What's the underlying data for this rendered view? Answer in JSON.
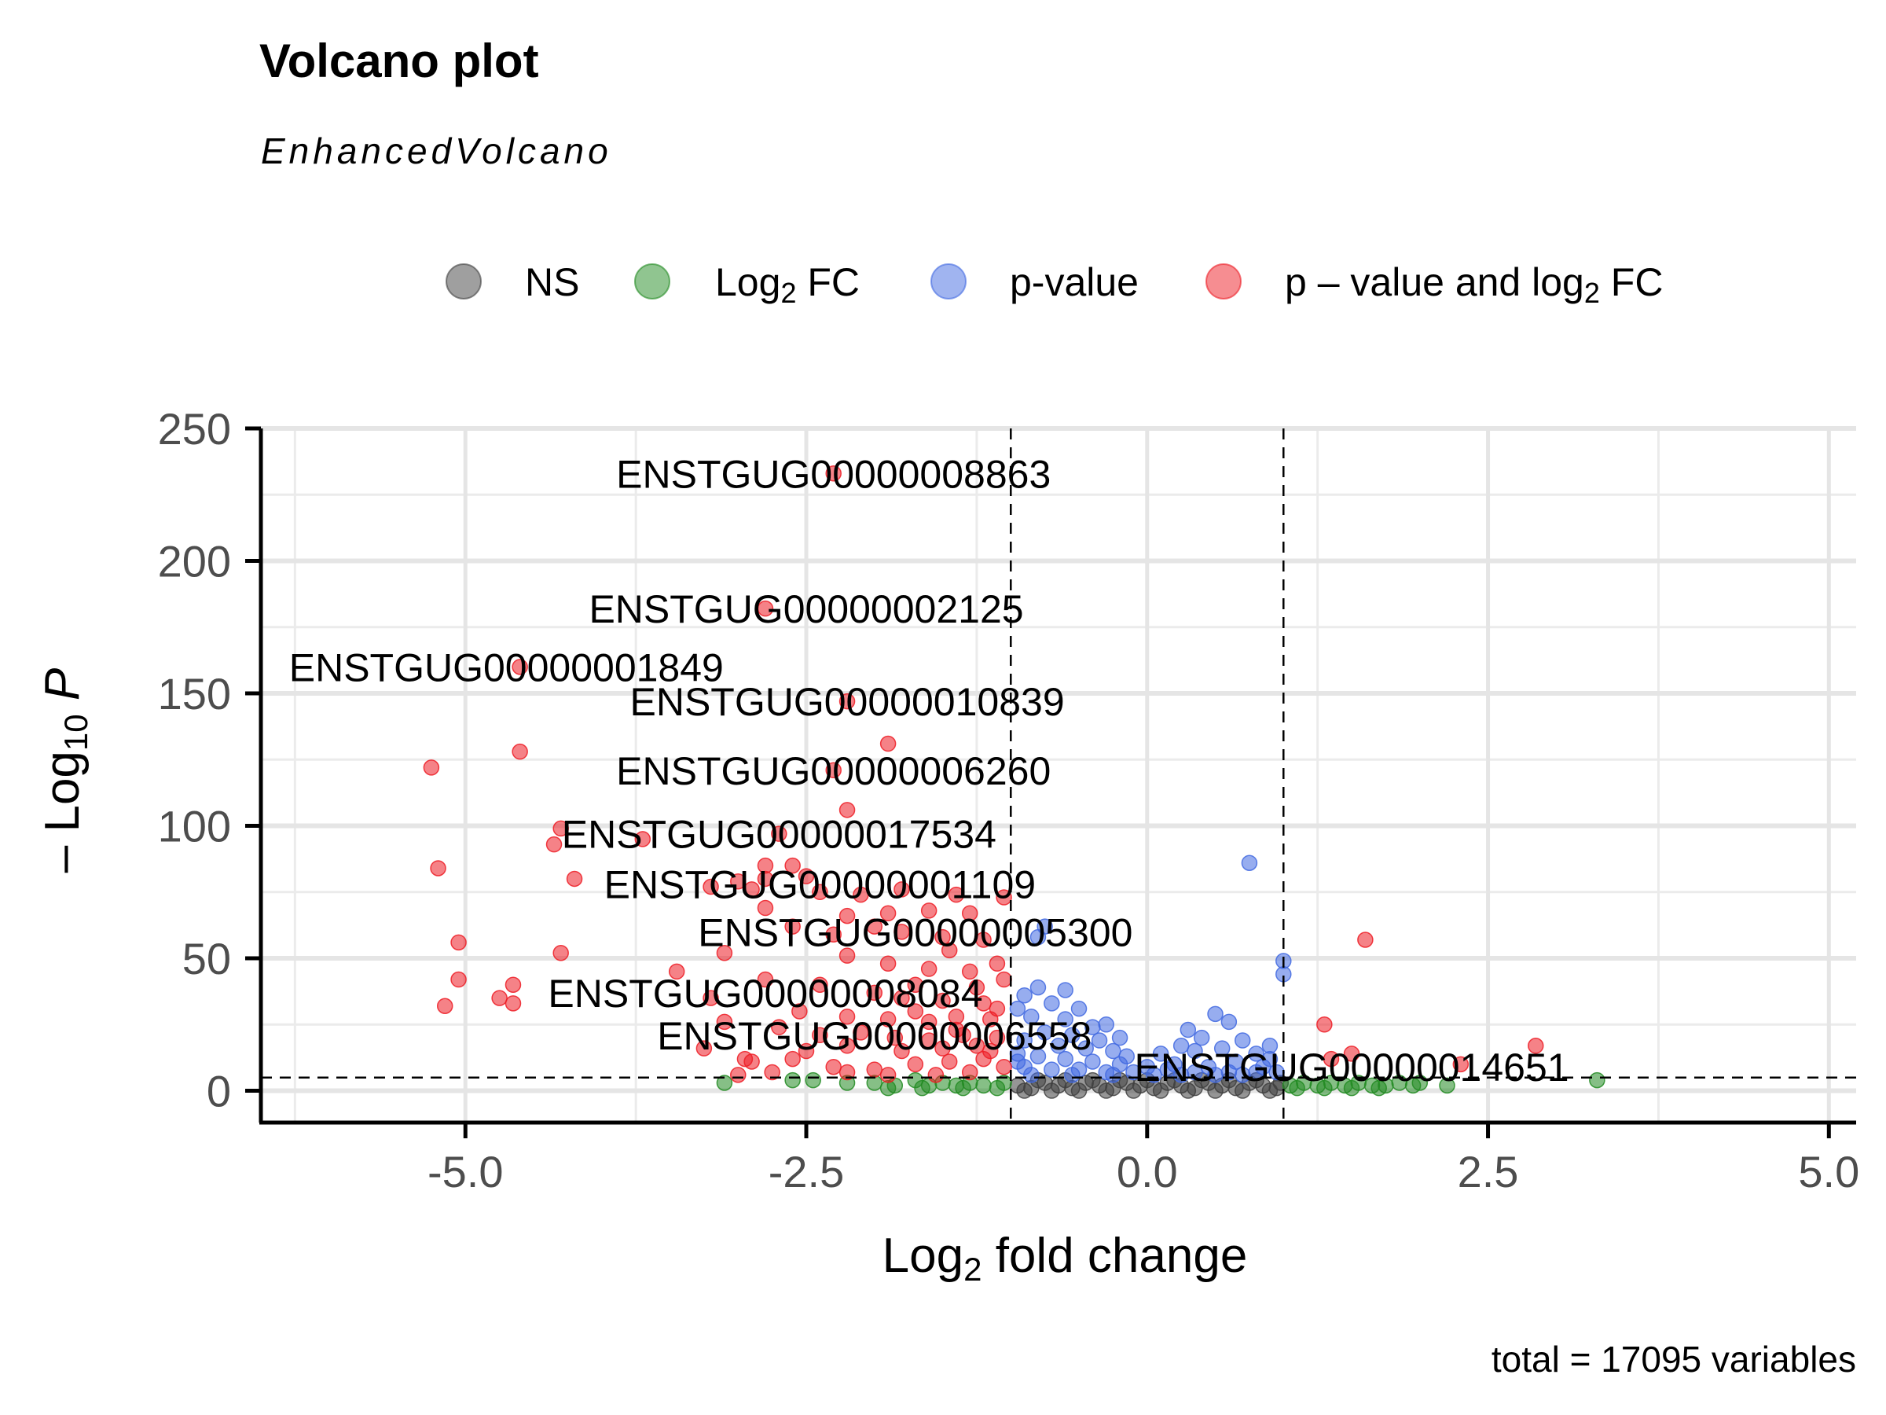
{
  "chart_data": {
    "type": "scatter",
    "title": "Volcano plot",
    "subtitle": "EnhancedVolcano",
    "caption": "total = 17095 variables",
    "xlabel": {
      "base": "Log",
      "sub": "2",
      "rest": " fold change"
    },
    "ylabel": {
      "prefix": "– Log",
      "sub": "10",
      "rest": " P"
    },
    "xlim": [
      -6.5,
      5.2
    ],
    "ylim": [
      -12,
      250
    ],
    "x_ticks": [
      -5.0,
      -2.5,
      0.0,
      2.5,
      5.0
    ],
    "x_tick_labels": [
      "-5.0",
      "-2.5",
      "0.0",
      "2.5",
      "5.0"
    ],
    "y_ticks": [
      0,
      50,
      100,
      150,
      200,
      250
    ],
    "y_tick_labels": [
      "0",
      "50",
      "100",
      "150",
      "200",
      "250"
    ],
    "grid": true,
    "legend_position": "top",
    "cutoffs": {
      "fc": [
        -1,
        1
      ],
      "p_y": 5
    },
    "legend": [
      {
        "key": "NS",
        "color": "#404040",
        "label": {
          "base": "NS",
          "sub": "",
          "rest": ""
        }
      },
      {
        "key": "FC",
        "color": "#228B22",
        "label": {
          "base": "Log",
          "sub": "2",
          "rest": " FC"
        }
      },
      {
        "key": "P",
        "color": "#4169E1",
        "label": {
          "base": "p-value",
          "sub": "",
          "rest": ""
        }
      },
      {
        "key": "FCP",
        "color": "#ED1C24",
        "label": {
          "base": "p – value and log",
          "sub": "2",
          "rest": " FC"
        }
      }
    ],
    "labels": [
      {
        "text": "ENSTGUG00000008863",
        "x": -2.3,
        "y": 233
      },
      {
        "text": "ENSTGUG00000002125",
        "x": -2.5,
        "y": 182
      },
      {
        "text": "ENSTGUG00000001849",
        "x": -4.7,
        "y": 160
      },
      {
        "text": "ENSTGUG00000010839",
        "x": -2.2,
        "y": 147
      },
      {
        "text": "ENSTGUG00000006260",
        "x": -2.3,
        "y": 121
      },
      {
        "text": "ENSTGUG00000017534",
        "x": -2.7,
        "y": 97
      },
      {
        "text": "ENSTGUG00000001109",
        "x": -2.4,
        "y": 78
      },
      {
        "text": "ENSTGUG00000005300",
        "x": -1.7,
        "y": 60
      },
      {
        "text": "ENSTGUG00000008084",
        "x": -2.8,
        "y": 37
      },
      {
        "text": "ENSTGUG00000006558",
        "x": -2.0,
        "y": 21
      },
      {
        "text": "ENSTGUG00000014651",
        "x": 1.5,
        "y": 9
      }
    ],
    "series": [
      {
        "key": "FCP",
        "points": [
          [
            -2.3,
            233
          ],
          [
            -2.8,
            182
          ],
          [
            -4.6,
            160
          ],
          [
            -2.2,
            147
          ],
          [
            -1.9,
            131
          ],
          [
            -4.6,
            128
          ],
          [
            -5.25,
            122
          ],
          [
            -2.3,
            121
          ],
          [
            -2.2,
            106
          ],
          [
            -4.3,
            99
          ],
          [
            -3.7,
            95
          ],
          [
            -4.35,
            93
          ],
          [
            -2.7,
            97
          ],
          [
            -5.2,
            84
          ],
          [
            -2.8,
            85
          ],
          [
            -2.6,
            85
          ],
          [
            -4.2,
            80
          ],
          [
            -3.0,
            79
          ],
          [
            -2.5,
            81
          ],
          [
            -2.8,
            80
          ],
          [
            -2.9,
            76
          ],
          [
            -3.2,
            77
          ],
          [
            -2.4,
            75
          ],
          [
            -2.1,
            74
          ],
          [
            -1.8,
            76
          ],
          [
            -1.4,
            74
          ],
          [
            -1.05,
            73
          ],
          [
            -2.8,
            69
          ],
          [
            -2.2,
            66
          ],
          [
            -1.9,
            67
          ],
          [
            -1.6,
            68
          ],
          [
            -1.3,
            67
          ],
          [
            -5.05,
            56
          ],
          [
            -4.3,
            52
          ],
          [
            -2.0,
            62
          ],
          [
            -1.8,
            60
          ],
          [
            -1.5,
            58
          ],
          [
            -1.2,
            57
          ],
          [
            -2.3,
            59
          ],
          [
            -2.6,
            62
          ],
          [
            1.6,
            57
          ],
          [
            -3.1,
            52
          ],
          [
            -2.2,
            51
          ],
          [
            -1.9,
            48
          ],
          [
            -1.6,
            46
          ],
          [
            -1.3,
            45
          ],
          [
            -1.05,
            42
          ],
          [
            -1.7,
            40
          ],
          [
            -5.05,
            42
          ],
          [
            -4.65,
            40
          ],
          [
            -3.45,
            45
          ],
          [
            -2.8,
            42
          ],
          [
            -2.4,
            40
          ],
          [
            -2.0,
            37
          ],
          [
            -1.8,
            35
          ],
          [
            -1.5,
            34
          ],
          [
            -1.2,
            33
          ],
          [
            -1.1,
            31
          ],
          [
            -5.15,
            32
          ],
          [
            -4.75,
            35
          ],
          [
            -4.65,
            33
          ],
          [
            -3.2,
            35
          ],
          [
            -2.55,
            30
          ],
          [
            -2.2,
            28
          ],
          [
            -1.9,
            27
          ],
          [
            -1.6,
            26
          ],
          [
            -1.4,
            28
          ],
          [
            -1.15,
            27
          ],
          [
            1.3,
            25
          ],
          [
            -3.1,
            26
          ],
          [
            -2.7,
            24
          ],
          [
            -2.4,
            21
          ],
          [
            -2.1,
            22
          ],
          [
            -1.85,
            20
          ],
          [
            -1.6,
            19
          ],
          [
            -1.35,
            21
          ],
          [
            -1.1,
            20
          ],
          [
            -1.25,
            17
          ],
          [
            -1.5,
            16
          ],
          [
            -1.8,
            15
          ],
          [
            -2.2,
            17
          ],
          [
            -2.5,
            15
          ],
          [
            -3.25,
            16
          ],
          [
            -2.95,
            12
          ],
          [
            -2.6,
            12
          ],
          [
            -2.3,
            9
          ],
          [
            -2.0,
            8
          ],
          [
            -1.7,
            10
          ],
          [
            -1.45,
            11
          ],
          [
            -1.2,
            12
          ],
          [
            -1.05,
            9
          ],
          [
            -1.3,
            7
          ],
          [
            -1.55,
            6
          ],
          [
            -1.9,
            6
          ],
          [
            -2.2,
            7
          ],
          [
            -2.75,
            7
          ],
          [
            -3.0,
            6
          ],
          [
            -2.9,
            11
          ],
          [
            -1.15,
            15
          ],
          [
            -1.4,
            23
          ],
          [
            -1.7,
            30
          ],
          [
            -1.25,
            39
          ],
          [
            -1.45,
            53
          ],
          [
            -1.1,
            48
          ],
          [
            2.85,
            17
          ],
          [
            1.35,
            12
          ],
          [
            2.3,
            10
          ],
          [
            1.5,
            14
          ]
        ]
      },
      {
        "key": "P",
        "points": [
          [
            0.75,
            86
          ],
          [
            -0.75,
            62
          ],
          [
            -0.8,
            58
          ],
          [
            1.0,
            49
          ],
          [
            1.0,
            44
          ],
          [
            -0.8,
            39
          ],
          [
            -0.6,
            38
          ],
          [
            -0.9,
            36
          ],
          [
            -0.7,
            33
          ],
          [
            -0.5,
            31
          ],
          [
            -0.95,
            31
          ],
          [
            -0.85,
            28
          ],
          [
            -0.6,
            27
          ],
          [
            0.5,
            29
          ],
          [
            0.6,
            26
          ],
          [
            -0.3,
            25
          ],
          [
            -0.4,
            24
          ],
          [
            0.3,
            23
          ],
          [
            -0.75,
            22
          ],
          [
            -0.55,
            21
          ],
          [
            -0.2,
            20
          ],
          [
            0.4,
            20
          ],
          [
            0.7,
            19
          ],
          [
            -0.9,
            19
          ],
          [
            -0.65,
            17
          ],
          [
            -0.45,
            16
          ],
          [
            -0.25,
            15
          ],
          [
            0.1,
            14
          ],
          [
            0.35,
            15
          ],
          [
            0.55,
            16
          ],
          [
            0.8,
            14
          ],
          [
            0.9,
            12
          ],
          [
            -0.95,
            14
          ],
          [
            -0.8,
            13
          ],
          [
            -0.6,
            12
          ],
          [
            -0.4,
            11
          ],
          [
            -0.2,
            10
          ],
          [
            0.0,
            9
          ],
          [
            0.2,
            10
          ],
          [
            0.45,
            9
          ],
          [
            0.65,
            11
          ],
          [
            0.85,
            9
          ],
          [
            -0.9,
            9
          ],
          [
            -0.7,
            8
          ],
          [
            -0.5,
            8
          ],
          [
            -0.3,
            7
          ],
          [
            -0.1,
            7
          ],
          [
            0.15,
            8
          ],
          [
            0.35,
            7
          ],
          [
            0.6,
            7
          ],
          [
            0.8,
            7
          ],
          [
            0.95,
            7
          ],
          [
            -0.85,
            6
          ],
          [
            -0.55,
            6
          ],
          [
            -0.25,
            6
          ],
          [
            0.05,
            6
          ],
          [
            0.25,
            6
          ],
          [
            0.5,
            6
          ],
          [
            0.7,
            6
          ],
          [
            -0.95,
            11
          ],
          [
            0.9,
            17
          ],
          [
            -0.35,
            19
          ],
          [
            0.25,
            17
          ],
          [
            -0.15,
            13
          ]
        ]
      },
      {
        "key": "FC",
        "points": [
          [
            -3.1,
            3
          ],
          [
            -2.45,
            4
          ],
          [
            -2.2,
            3
          ],
          [
            -2.0,
            3
          ],
          [
            -1.85,
            2
          ],
          [
            -1.7,
            4
          ],
          [
            -1.6,
            2
          ],
          [
            -1.5,
            3
          ],
          [
            -1.4,
            2
          ],
          [
            -1.3,
            3
          ],
          [
            -1.2,
            2
          ],
          [
            -1.1,
            1
          ],
          [
            -1.05,
            3
          ],
          [
            -1.9,
            1
          ],
          [
            -1.35,
            1
          ],
          [
            -1.65,
            1
          ],
          [
            1.05,
            2
          ],
          [
            1.15,
            3
          ],
          [
            1.25,
            2
          ],
          [
            1.35,
            3
          ],
          [
            1.45,
            2
          ],
          [
            1.55,
            3
          ],
          [
            1.65,
            2
          ],
          [
            1.75,
            2
          ],
          [
            1.85,
            3
          ],
          [
            1.95,
            2
          ],
          [
            2.2,
            2
          ],
          [
            3.3,
            4
          ],
          [
            1.1,
            1
          ],
          [
            1.3,
            1
          ],
          [
            1.5,
            1
          ],
          [
            1.7,
            1
          ],
          [
            2.0,
            3
          ],
          [
            -2.6,
            4
          ]
        ]
      },
      {
        "key": "NS",
        "points": [
          [
            -0.95,
            2
          ],
          [
            -0.85,
            1
          ],
          [
            -0.75,
            3
          ],
          [
            -0.65,
            2
          ],
          [
            -0.55,
            1
          ],
          [
            -0.45,
            3
          ],
          [
            -0.35,
            2
          ],
          [
            -0.25,
            1
          ],
          [
            -0.15,
            3
          ],
          [
            -0.05,
            2
          ],
          [
            0.05,
            1
          ],
          [
            0.15,
            3
          ],
          [
            0.25,
            2
          ],
          [
            0.35,
            1
          ],
          [
            0.45,
            3
          ],
          [
            0.55,
            2
          ],
          [
            0.65,
            1
          ],
          [
            0.75,
            3
          ],
          [
            0.85,
            2
          ],
          [
            0.95,
            1
          ],
          [
            -0.9,
            0
          ],
          [
            -0.7,
            0
          ],
          [
            -0.5,
            0
          ],
          [
            -0.3,
            0
          ],
          [
            -0.1,
            0
          ],
          [
            0.1,
            0
          ],
          [
            0.3,
            0
          ],
          [
            0.5,
            0
          ],
          [
            0.7,
            0
          ],
          [
            0.9,
            0
          ],
          [
            -0.8,
            4
          ],
          [
            -0.4,
            4
          ],
          [
            0.0,
            4
          ],
          [
            0.4,
            4
          ],
          [
            0.8,
            4
          ],
          [
            -0.6,
            4
          ],
          [
            0.2,
            4
          ],
          [
            0.6,
            4
          ],
          [
            -0.2,
            4
          ],
          [
            0.98,
            3
          ]
        ]
      }
    ]
  }
}
